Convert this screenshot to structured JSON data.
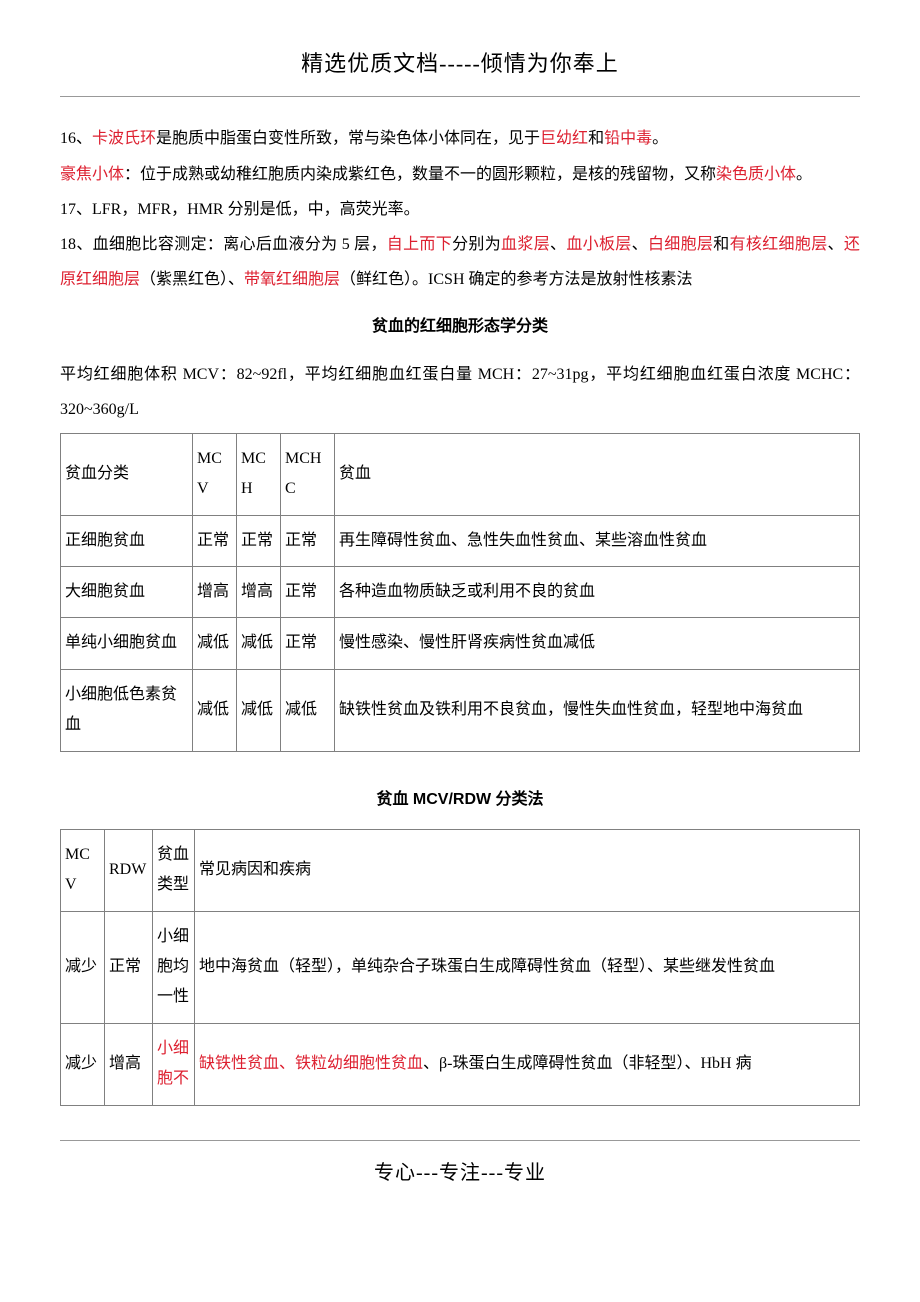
{
  "header": "精选优质文档-----倾情为你奉上",
  "footer": "专心---专注---专业",
  "p16": {
    "prefix": "16、",
    "t1": "卡波氏环",
    "t2": "是胞质中脂蛋白变性所致，常与染色体小体同在，见于",
    "t3": "巨幼红",
    "t4": "和",
    "t5": "铅中毒",
    "t6": "。"
  },
  "p16b": {
    "t1": "豪焦小体",
    "t2": "：位于成熟或幼稚红胞质内染成紫红色，数量不一的圆形颗粒，是核的残留物，又称",
    "t3": "染色质小体",
    "t4": "。"
  },
  "p17": "17、LFR，MFR，HMR 分别是低，中，高荧光率。",
  "p18": {
    "t1": "18、血细胞比容测定：离心后血液分为 5 层，",
    "t2": "自上而下",
    "t3": "分别为",
    "t4": "血浆层",
    "t5": "、",
    "t6": "血小板层",
    "t7": "、",
    "t8": "白细胞层",
    "t9": "和",
    "t10": "有核红细胞层",
    "t11": "、",
    "t12": "还原红细胞层",
    "t13": "（紫黑红色）、",
    "t14": "带氧红细胞层",
    "t15": "（鲜红色）。ICSH 确定的参考方法是放射性核素法"
  },
  "section1": "贫血的红细胞形态学分类",
  "p_ref": "平均红细胞体积 MCV：82~92fl，平均红细胞血红蛋白量 MCH：27~31pg，平均红细胞血红蛋白浓度 MCHC：320~360g/L",
  "table1": {
    "head": [
      "贫血分类",
      "MCV",
      "MCH",
      "MCHC",
      "贫血"
    ],
    "rows": [
      [
        "正细胞贫血",
        "正常",
        "正常",
        "正常",
        "再生障碍性贫血、急性失血性贫血、某些溶血性贫血"
      ],
      [
        "大细胞贫血",
        "增高",
        "增高",
        "正常",
        "各种造血物质缺乏或利用不良的贫血"
      ],
      [
        "单纯小细胞贫血",
        "减低",
        "减低",
        "正常",
        "慢性感染、慢性肝肾疾病性贫血减低"
      ],
      [
        "小细胞低色素贫血",
        "减低",
        "减低",
        "减低",
        "缺铁性贫血及铁利用不良贫血，慢性失血性贫血，轻型地中海贫血"
      ]
    ]
  },
  "section2": "贫血 MCV/RDW 分类法",
  "table2": {
    "head": [
      "MCV",
      "RDW",
      "贫血类型",
      "常见病因和疾病"
    ],
    "rows": [
      {
        "c1": "减少",
        "c2": "正常",
        "c3": "小细胞均一性",
        "c4": "地中海贫血（轻型），单纯杂合子珠蛋白生成障碍性贫血（轻型）、某些继发性贫血"
      },
      {
        "c1": "减少",
        "c2": "增高",
        "c3_red": "小细胞不",
        "c4_red": "缺铁性贫血、铁粒幼细胞性贫血",
        "c4_plain": "、β-珠蛋白生成障碍性贫血（非轻型）、HbH 病"
      }
    ]
  }
}
